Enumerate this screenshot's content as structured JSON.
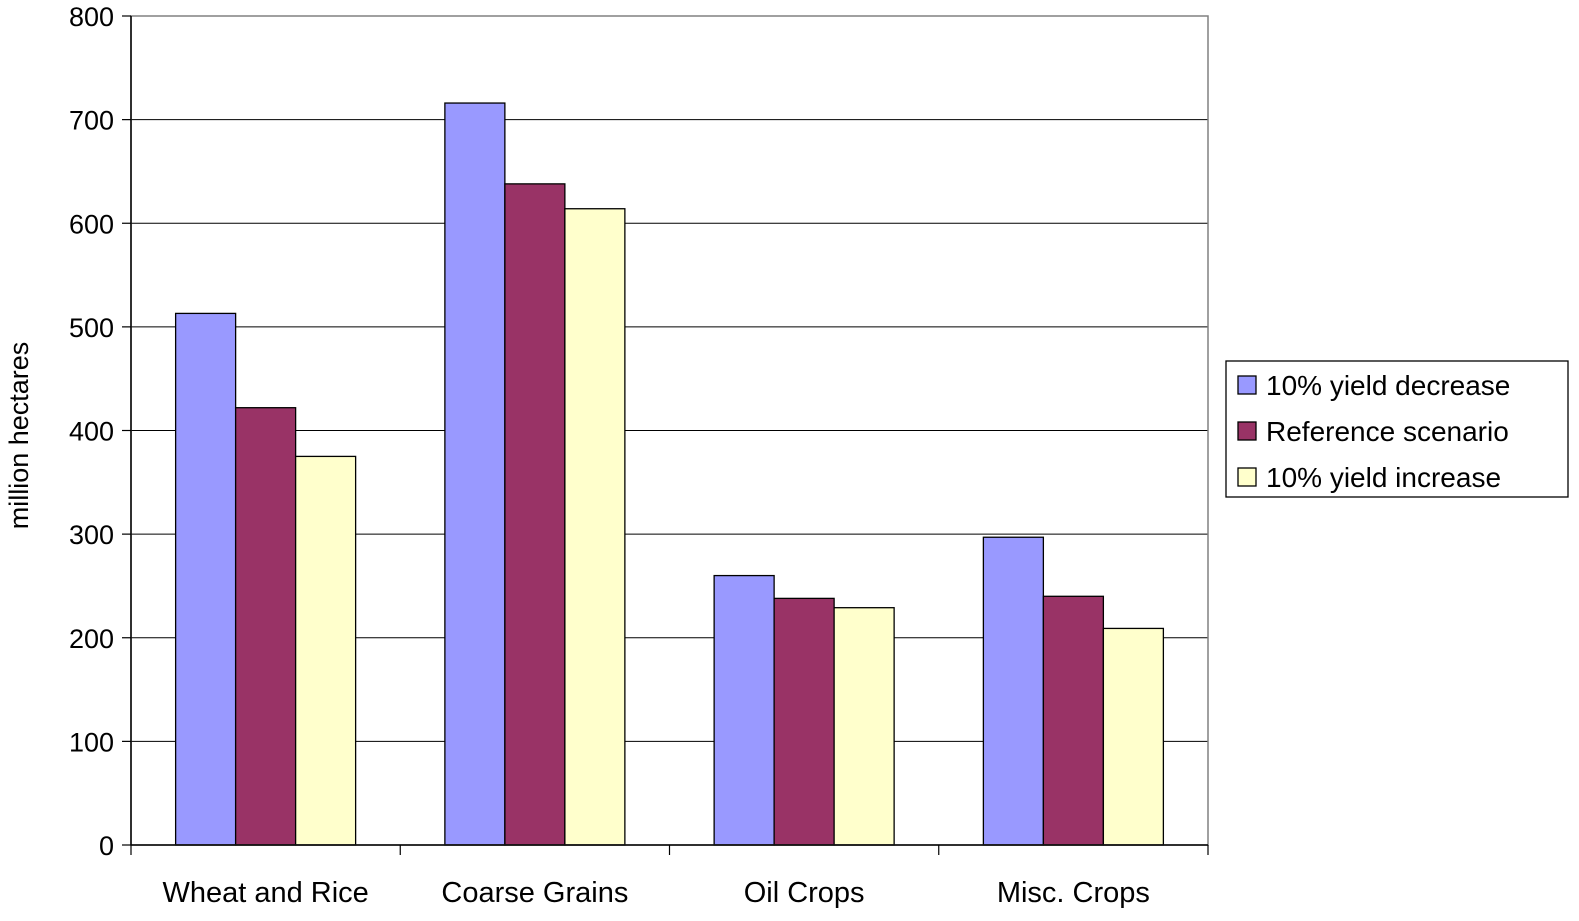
{
  "chart_data": {
    "type": "bar",
    "title": "",
    "xlabel": "",
    "ylabel": "million hectares",
    "ylim": [
      0,
      800
    ],
    "yticks": [
      0,
      100,
      200,
      300,
      400,
      500,
      600,
      700,
      800
    ],
    "grid": true,
    "legend_position": "right",
    "categories": [
      "Wheat and Rice",
      "Coarse Grains",
      "Oil Crops",
      "Misc. Crops"
    ],
    "series": [
      {
        "name": "10% yield decrease",
        "color": "#9999ff",
        "values": [
          513,
          716,
          260,
          297
        ]
      },
      {
        "name": "Reference scenario",
        "color": "#993366",
        "values": [
          422,
          638,
          238,
          240
        ]
      },
      {
        "name": "10% yield increase",
        "color": "#ffffcc",
        "values": [
          375,
          614,
          229,
          209
        ]
      }
    ]
  }
}
